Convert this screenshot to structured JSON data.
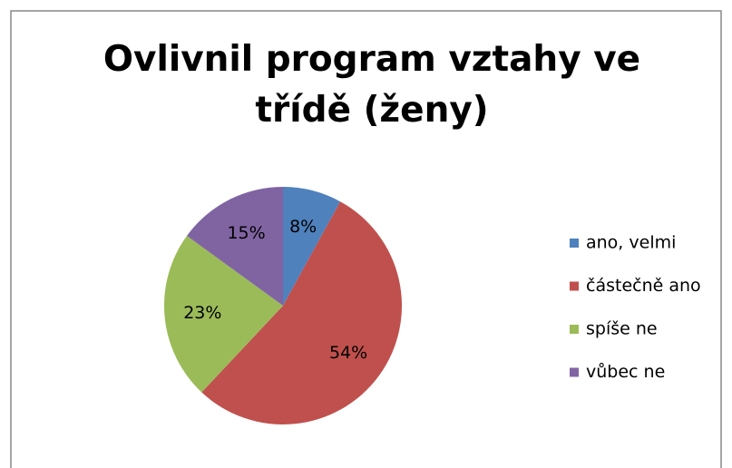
{
  "chart_data": {
    "type": "pie",
    "title": "Ovlivnil program vztahy ve třídě (ženy)",
    "categories": [
      "ano, velmi",
      "částečně ano",
      "spíše ne",
      "vůbec ne"
    ],
    "values": [
      8,
      54,
      23,
      15
    ],
    "value_labels": [
      "8%",
      "54%",
      "23%",
      "15%"
    ],
    "colors": [
      "#4f81bd",
      "#c0504d",
      "#9bbb59",
      "#8064a2"
    ],
    "legend": "right"
  }
}
